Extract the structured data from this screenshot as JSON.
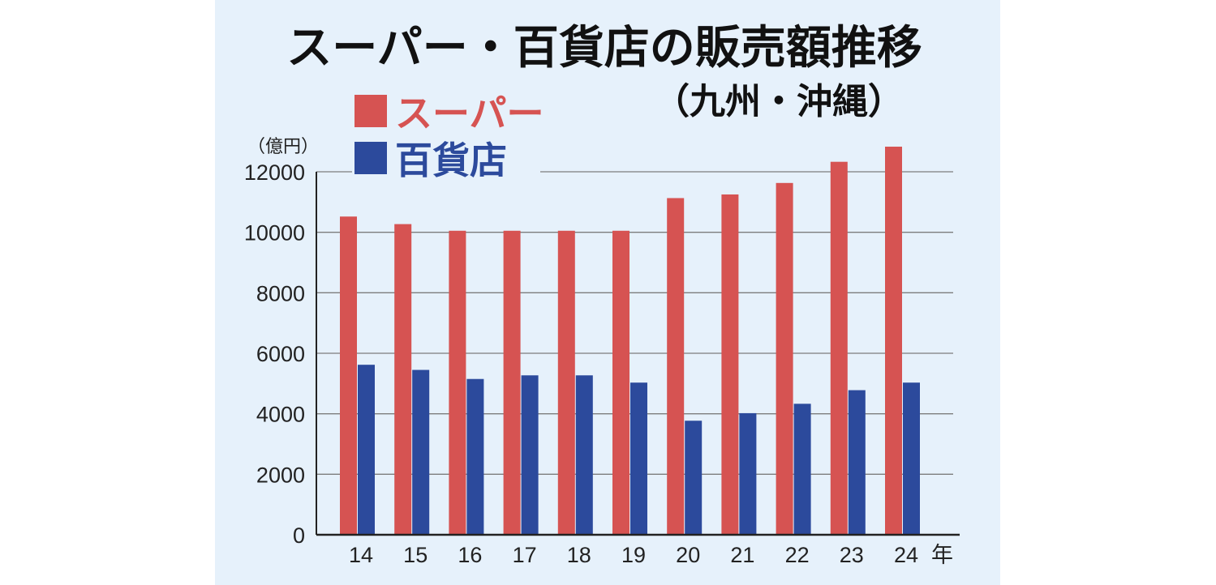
{
  "chart_data": {
    "type": "bar",
    "title": "スーパー・百貨店の販売額推移",
    "subtitle": "（九州・沖縄）",
    "ylabel": "（億円）",
    "xlabel": "年",
    "categories": [
      "14",
      "15",
      "16",
      "17",
      "18",
      "19",
      "20",
      "21",
      "22",
      "23",
      "24"
    ],
    "series": [
      {
        "name": "スーパー",
        "color": "#d65352",
        "values": [
          10520,
          10270,
          10050,
          10050,
          10050,
          10050,
          11130,
          11250,
          11630,
          12330,
          12830
        ]
      },
      {
        "name": "百貨店",
        "color": "#2c4a9c",
        "values": [
          5620,
          5450,
          5150,
          5270,
          5270,
          5030,
          3770,
          4020,
          4330,
          4780,
          5030
        ]
      }
    ],
    "ylim": [
      0,
      12000
    ],
    "yticks": [
      "0",
      "2000",
      "4000",
      "6000",
      "8000",
      "10000",
      "12000"
    ],
    "grid": true,
    "legend_position": "top-left"
  }
}
